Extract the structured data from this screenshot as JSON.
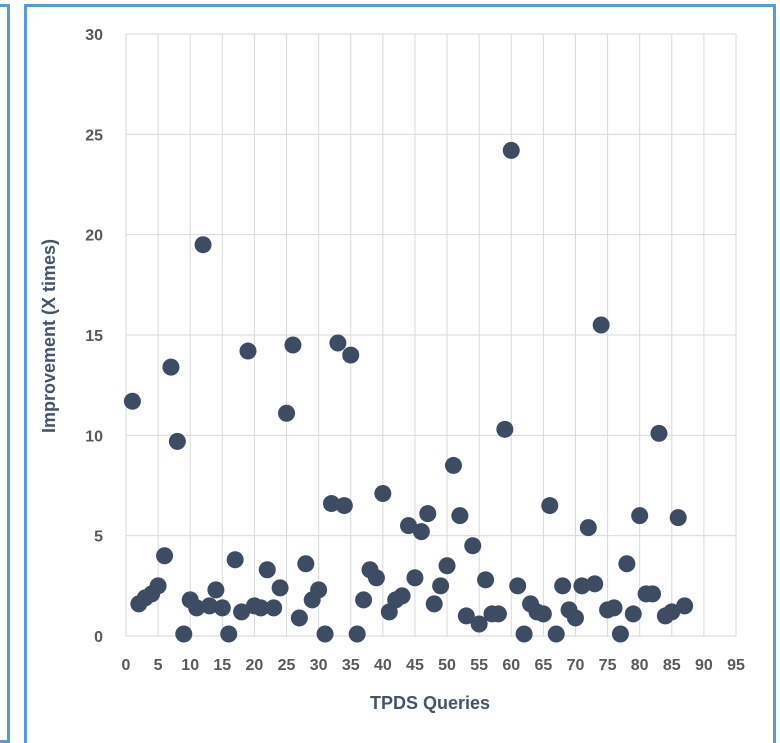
{
  "chart_data": {
    "type": "scatter",
    "title": "",
    "xlabel": "TPDS Queries",
    "ylabel": "Improvement (X times)",
    "xlim": [
      0,
      95
    ],
    "ylim": [
      0,
      30
    ],
    "xticks": [
      0,
      5,
      10,
      15,
      20,
      25,
      30,
      35,
      40,
      45,
      50,
      55,
      60,
      65,
      70,
      75,
      80,
      85,
      90,
      95
    ],
    "yticks": [
      0,
      5,
      10,
      15,
      20,
      25,
      30
    ],
    "grid": true,
    "legend": "none",
    "colors": {
      "point": "#3d4b63",
      "grid": "#d9d9d9",
      "panel_border": "#5b9bd5"
    },
    "series": [
      {
        "x": [
          1,
          2,
          3,
          4,
          5,
          6,
          7,
          8,
          9,
          10,
          11,
          12,
          13,
          14,
          15,
          16,
          17,
          18,
          19,
          20,
          21,
          22,
          23,
          24,
          25,
          26,
          27,
          28,
          29,
          30,
          31,
          32,
          33,
          34,
          35,
          36,
          37,
          38,
          39,
          40,
          41,
          42,
          43,
          44,
          45,
          46,
          47,
          48,
          49,
          50,
          51,
          52,
          53,
          54,
          55,
          56,
          57,
          58,
          59,
          60,
          61,
          62,
          63,
          64,
          65,
          66,
          67,
          68,
          69,
          70,
          71,
          72,
          73,
          74,
          75,
          76,
          77,
          78,
          79,
          80,
          81,
          82,
          83,
          84,
          85,
          86,
          87
        ],
        "y": [
          11.7,
          1.6,
          1.9,
          2.1,
          2.5,
          4.0,
          13.4,
          9.7,
          0.1,
          1.8,
          1.4,
          19.5,
          1.5,
          2.3,
          1.4,
          0.1,
          3.8,
          1.2,
          14.2,
          1.5,
          1.4,
          3.3,
          1.4,
          2.4,
          11.1,
          14.5,
          0.9,
          3.6,
          1.8,
          2.3,
          0.1,
          6.6,
          14.6,
          6.5,
          14.0,
          0.1,
          1.8,
          3.3,
          2.9,
          7.1,
          1.2,
          1.8,
          2.0,
          5.5,
          2.9,
          5.2,
          6.1,
          1.6,
          2.5,
          3.5,
          8.5,
          6.0,
          1.0,
          4.5,
          0.6,
          2.8,
          1.1,
          1.1,
          10.3,
          24.2,
          2.5,
          0.1,
          1.6,
          1.2,
          1.1,
          6.5,
          0.1,
          2.5,
          1.3,
          0.9,
          2.5,
          5.4,
          2.6,
          15.5,
          1.3,
          1.4,
          0.1,
          3.6,
          1.1,
          6.0,
          2.1,
          2.1,
          10.1,
          1.0,
          1.2,
          5.9,
          1.5
        ]
      }
    ]
  }
}
